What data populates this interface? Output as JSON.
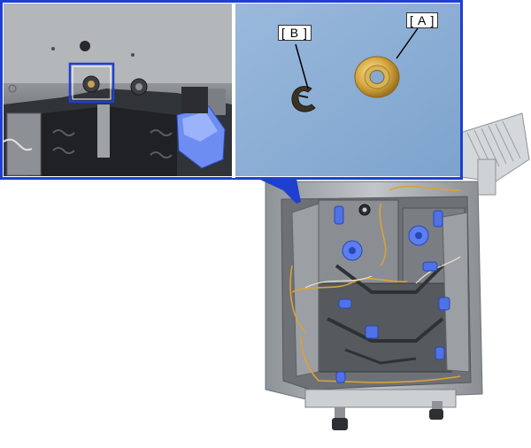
{
  "callouts": {
    "label_a": "[ A ]",
    "label_b": "[ B ]"
  },
  "colors": {
    "frame_blue": "#1f3fd1",
    "inset_background": "#8fb0d6",
    "machine_grey": "#a9adb2",
    "roller_blue": "#4f72e6",
    "wire_yellow": "#d9a23a"
  },
  "icons": {
    "washer": "washer-part-icon",
    "e_ring": "e-ring-part-icon",
    "locator": "highlighted-shaft-icon"
  }
}
